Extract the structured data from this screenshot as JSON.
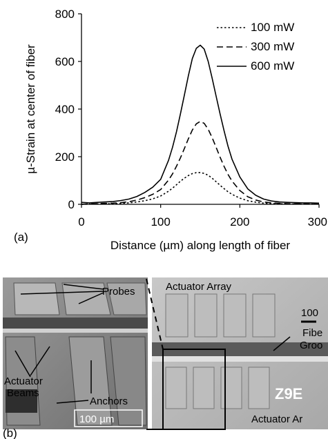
{
  "chart_data": {
    "type": "line",
    "title": "",
    "panel_label": "(a)",
    "xlabel": "Distance (µm) along length of fiber",
    "ylabel": "µ-Strain at center of fiber",
    "xlim": [
      0,
      300
    ],
    "ylim": [
      0,
      800
    ],
    "xticks": [
      "0",
      "100",
      "200",
      "300"
    ],
    "yticks": [
      "0",
      "200",
      "400",
      "600",
      "800"
    ],
    "legend_position": "top-right",
    "x": [
      0,
      10,
      20,
      30,
      40,
      50,
      60,
      70,
      80,
      90,
      100,
      110,
      115,
      120,
      125,
      130,
      135,
      140,
      145,
      150,
      155,
      160,
      165,
      170,
      175,
      180,
      185,
      190,
      200,
      210,
      220,
      230,
      240,
      250,
      260,
      270,
      280,
      290,
      300
    ],
    "series": [
      {
        "name": "100 mW",
        "style": "dotted",
        "values": [
          0,
          1,
          2,
          2,
          3,
          4,
          6,
          10,
          15,
          23,
          35,
          55,
          68,
          82,
          97,
          110,
          121,
          129,
          133,
          133,
          130,
          122,
          110,
          95,
          80,
          66,
          53,
          42,
          26,
          15,
          9,
          5,
          3,
          2,
          2,
          1,
          1,
          1,
          1
        ]
      },
      {
        "name": "300 mW",
        "style": "dashed",
        "values": [
          0,
          2,
          3,
          4,
          5,
          7,
          11,
          18,
          28,
          42,
          62,
          102,
          128,
          160,
          195,
          235,
          275,
          312,
          338,
          348,
          340,
          315,
          280,
          240,
          198,
          160,
          126,
          98,
          58,
          32,
          18,
          10,
          6,
          4,
          3,
          2,
          2,
          1,
          1
        ]
      },
      {
        "name": "600 mW",
        "style": "solid",
        "values": [
          8,
          6,
          8,
          10,
          12,
          16,
          22,
          33,
          50,
          72,
          105,
          185,
          240,
          305,
          380,
          460,
          540,
          612,
          655,
          668,
          652,
          600,
          530,
          455,
          380,
          310,
          245,
          190,
          115,
          65,
          38,
          22,
          14,
          10,
          8,
          7,
          6,
          6,
          5
        ]
      }
    ]
  },
  "photo": {
    "panel_label": "(b)",
    "left_labels": {
      "probes": "Probes",
      "actuator_beams_line1": "Actuator",
      "actuator_beams_line2": "Beams",
      "anchors": "Anchors",
      "scale": "100 µm"
    },
    "right_labels": {
      "actuator_array_top": "Actuator Array",
      "scale": "100",
      "fiber_line1": "Fibe",
      "fiber_line2": "Groo",
      "chip_marking": "Z9E",
      "actuator_array_bottom": "Actuator Ar"
    }
  }
}
